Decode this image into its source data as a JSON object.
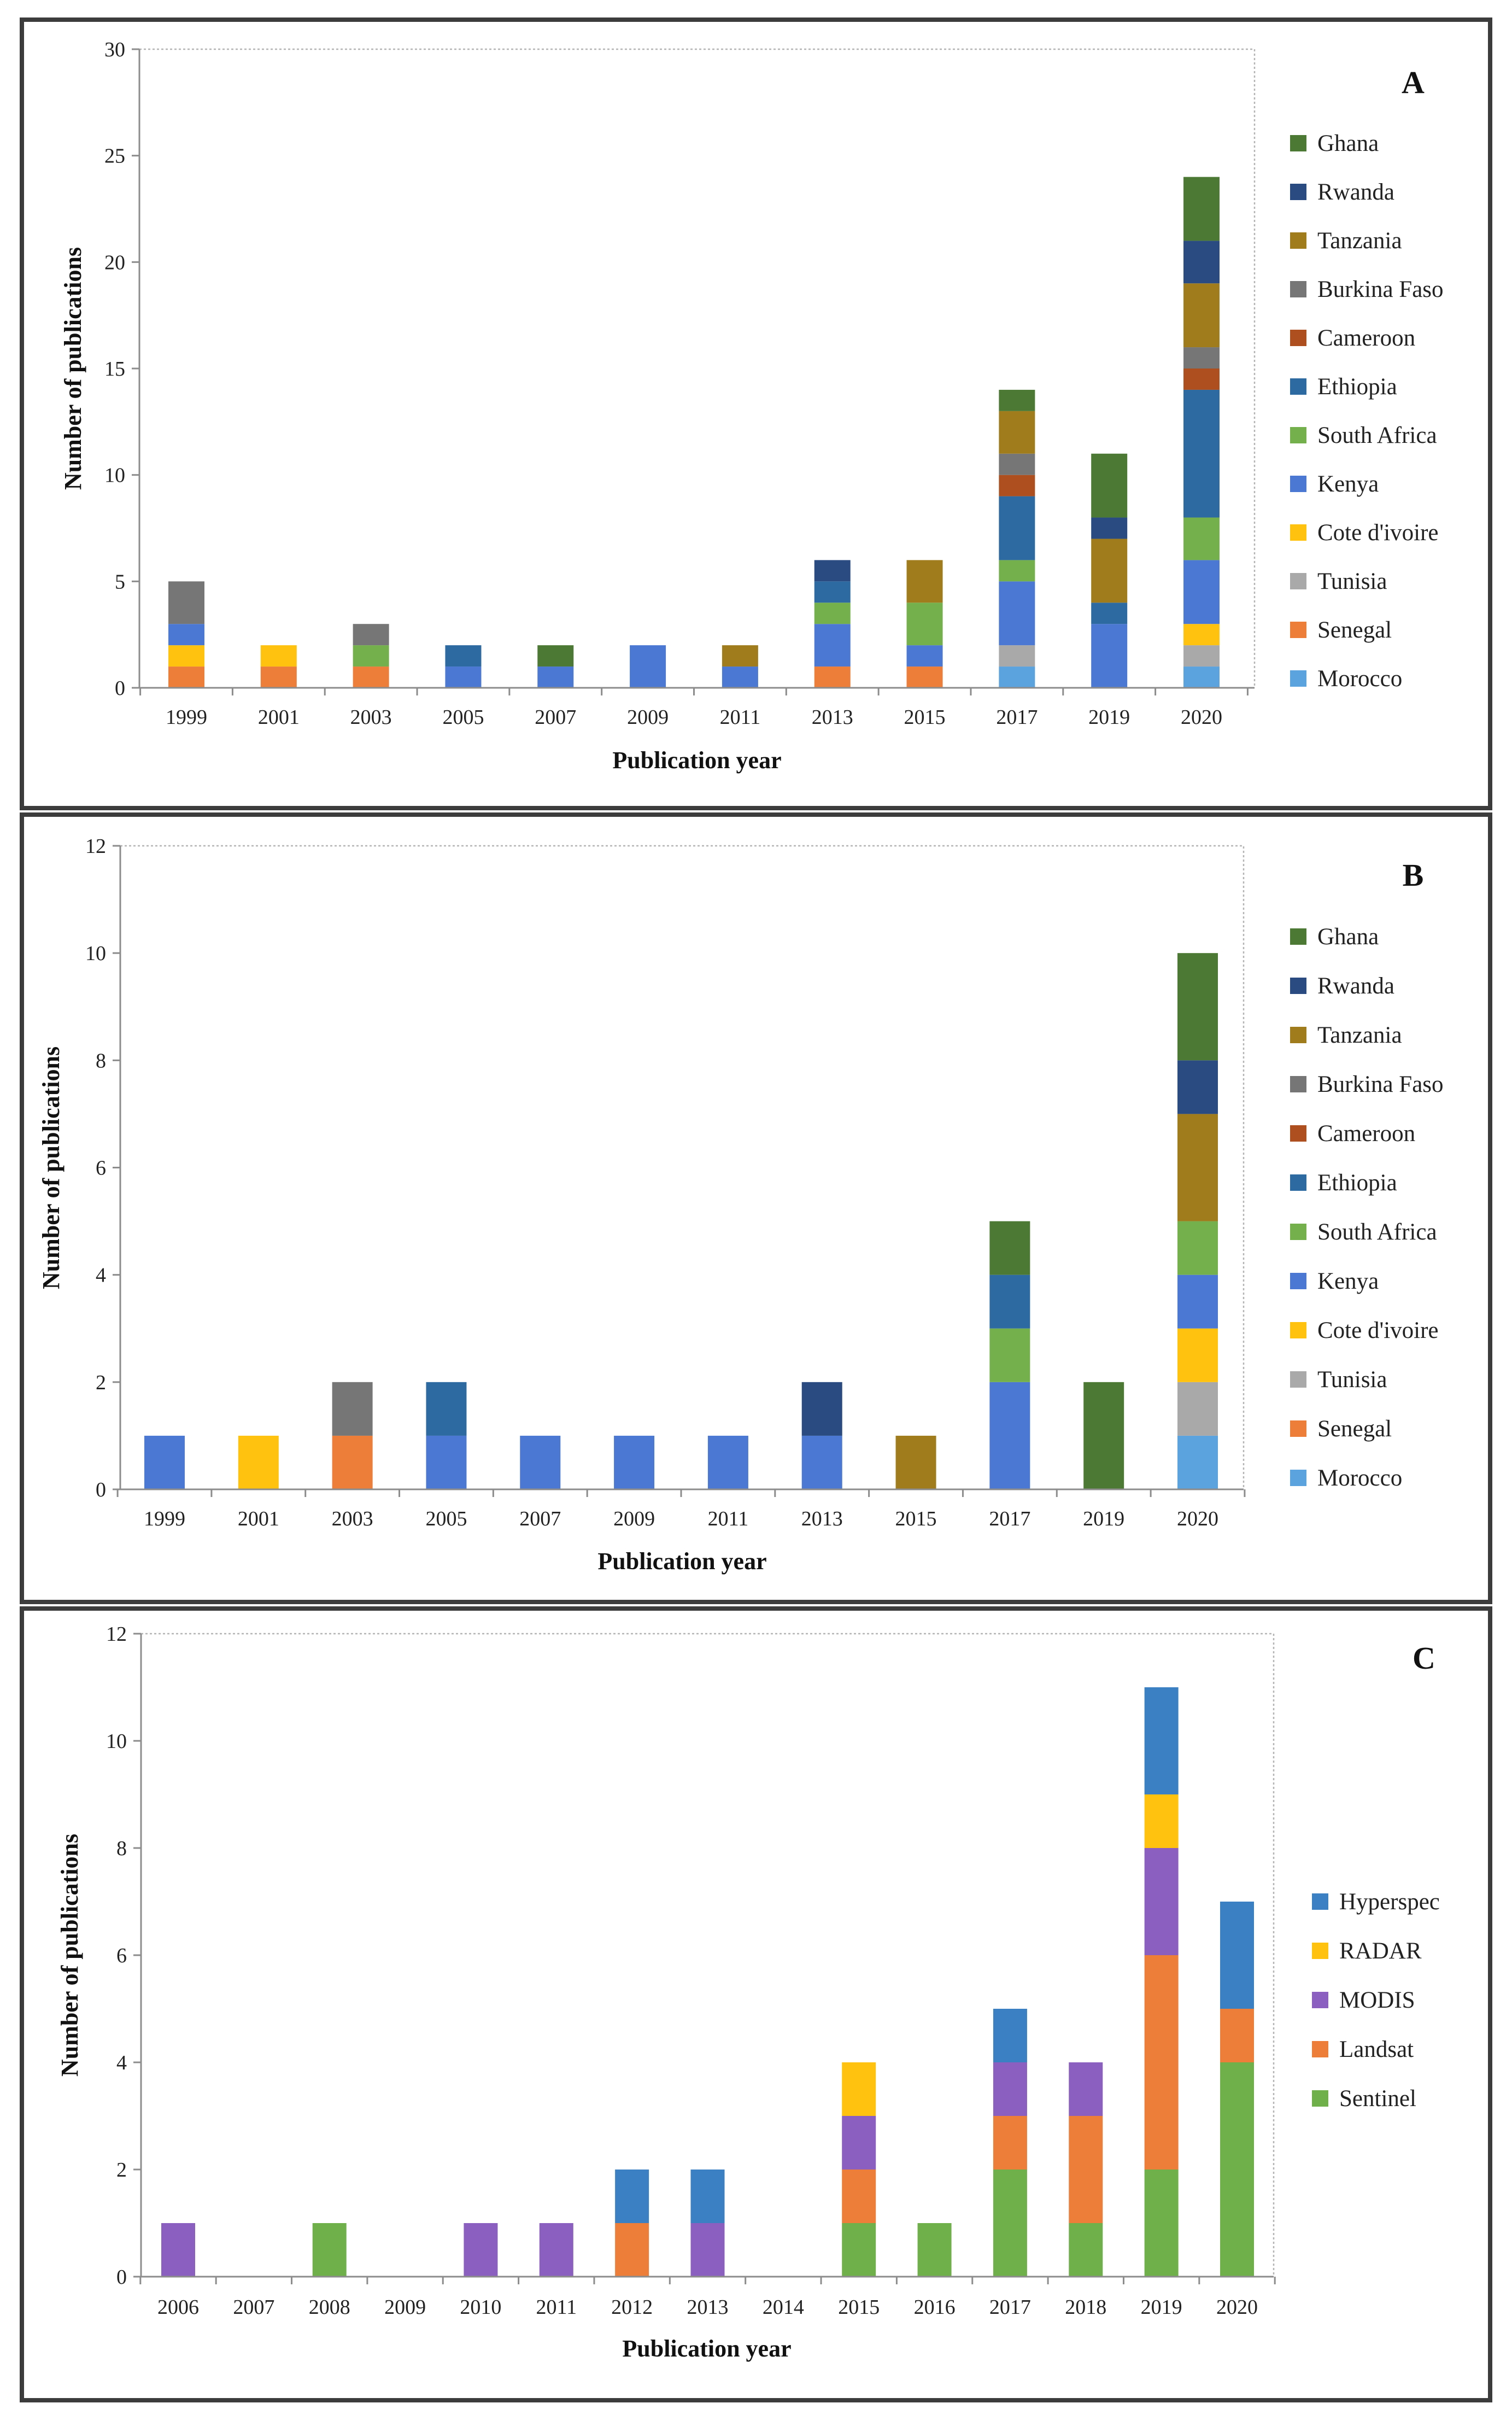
{
  "colors": {
    "Ghana": "#4c7a34",
    "Rwanda": "#294b82",
    "Tanzania": "#a07c1c",
    "Burkina Faso": "#767676",
    "Cameroon": "#ad4f1e",
    "Ethiopia": "#2e6aa2",
    "South Africa": "#74b04c",
    "Kenya": "#4b78d2",
    "Cote d'ivoire": "#ffc20e",
    "Tunisia": "#a9a9a9",
    "Senegal": "#ec7e3a",
    "Morocco": "#5ba3de",
    "Hyperspec": "#3b80c3",
    "RADAR": "#ffc20e",
    "MODIS": "#8a5fbf",
    "Landsat": "#ec7e3a",
    "Sentinel": "#6fb04a"
  },
  "chart_data": [
    {
      "type": "bar",
      "stacked": true,
      "panel": "A",
      "xlabel": "Publication year",
      "ylabel": "Number of publications",
      "ylim": [
        0,
        30
      ],
      "ytick_step": 5,
      "categories": [
        "1999",
        "2001",
        "2003",
        "2005",
        "2007",
        "2009",
        "2011",
        "2013",
        "2015",
        "2017",
        "2019",
        "2020"
      ],
      "legend": [
        "Ghana",
        "Rwanda",
        "Tanzania",
        "Burkina Faso",
        "Cameroon",
        "Ethiopia",
        "South Africa",
        "Kenya",
        "Cote d'ivoire",
        "Tunisia",
        "Senegal",
        "Morocco"
      ],
      "series": [
        {
          "name": "Morocco",
          "values": [
            0,
            0,
            0,
            0,
            0,
            0,
            0,
            0,
            0,
            1,
            0,
            1
          ]
        },
        {
          "name": "Senegal",
          "values": [
            1,
            1,
            1,
            0,
            0,
            0,
            0,
            1,
            1,
            0,
            0,
            0
          ]
        },
        {
          "name": "Tunisia",
          "values": [
            0,
            0,
            0,
            0,
            0,
            0,
            0,
            0,
            0,
            1,
            0,
            1
          ]
        },
        {
          "name": "Cote d'ivoire",
          "values": [
            1,
            1,
            0,
            0,
            0,
            0,
            0,
            0,
            0,
            0,
            0,
            1
          ]
        },
        {
          "name": "Kenya",
          "values": [
            1,
            0,
            0,
            1,
            1,
            2,
            1,
            2,
            1,
            3,
            3,
            3
          ]
        },
        {
          "name": "South Africa",
          "values": [
            0,
            0,
            1,
            0,
            0,
            0,
            0,
            1,
            2,
            1,
            0,
            2
          ]
        },
        {
          "name": "Ethiopia",
          "values": [
            0,
            0,
            0,
            1,
            0,
            0,
            0,
            1,
            0,
            3,
            1,
            6
          ]
        },
        {
          "name": "Cameroon",
          "values": [
            0,
            0,
            0,
            0,
            0,
            0,
            0,
            0,
            0,
            1,
            0,
            1
          ]
        },
        {
          "name": "Burkina Faso",
          "values": [
            2,
            0,
            1,
            0,
            0,
            0,
            0,
            0,
            0,
            1,
            0,
            1
          ]
        },
        {
          "name": "Tanzania",
          "values": [
            0,
            0,
            0,
            0,
            0,
            0,
            1,
            0,
            2,
            2,
            3,
            3
          ]
        },
        {
          "name": "Rwanda",
          "values": [
            0,
            0,
            0,
            0,
            0,
            0,
            0,
            1,
            0,
            0,
            1,
            2
          ]
        },
        {
          "name": "Ghana",
          "values": [
            0,
            0,
            0,
            0,
            1,
            0,
            0,
            0,
            0,
            1,
            3,
            3
          ]
        }
      ]
    },
    {
      "type": "bar",
      "stacked": true,
      "panel": "B",
      "xlabel": "Publication year",
      "ylabel": "Number of publications",
      "ylim": [
        0,
        12
      ],
      "ytick_step": 2,
      "categories": [
        "1999",
        "2001",
        "2003",
        "2005",
        "2007",
        "2009",
        "2011",
        "2013",
        "2015",
        "2017",
        "2019",
        "2020"
      ],
      "legend": [
        "Ghana",
        "Rwanda",
        "Tanzania",
        "Burkina Faso",
        "Cameroon",
        "Ethiopia",
        "South Africa",
        "Kenya",
        "Cote d'ivoire",
        "Tunisia",
        "Senegal",
        "Morocco"
      ],
      "series": [
        {
          "name": "Morocco",
          "values": [
            0,
            0,
            0,
            0,
            0,
            0,
            0,
            0,
            0,
            0,
            0,
            1
          ]
        },
        {
          "name": "Senegal",
          "values": [
            0,
            0,
            1,
            0,
            0,
            0,
            0,
            0,
            0,
            0,
            0,
            0
          ]
        },
        {
          "name": "Tunisia",
          "values": [
            0,
            0,
            0,
            0,
            0,
            0,
            0,
            0,
            0,
            0,
            0,
            1
          ]
        },
        {
          "name": "Cote d'ivoire",
          "values": [
            0,
            1,
            0,
            0,
            0,
            0,
            0,
            0,
            0,
            0,
            0,
            1
          ]
        },
        {
          "name": "Kenya",
          "values": [
            1,
            0,
            0,
            1,
            1,
            1,
            1,
            1,
            0,
            2,
            0,
            1
          ]
        },
        {
          "name": "South Africa",
          "values": [
            0,
            0,
            0,
            0,
            0,
            0,
            0,
            0,
            0,
            1,
            0,
            1
          ]
        },
        {
          "name": "Ethiopia",
          "values": [
            0,
            0,
            0,
            1,
            0,
            0,
            0,
            0,
            0,
            1,
            0,
            0
          ]
        },
        {
          "name": "Cameroon",
          "values": [
            0,
            0,
            0,
            0,
            0,
            0,
            0,
            0,
            0,
            0,
            0,
            0
          ]
        },
        {
          "name": "Burkina Faso",
          "values": [
            0,
            0,
            1,
            0,
            0,
            0,
            0,
            0,
            0,
            0,
            0,
            0
          ]
        },
        {
          "name": "Tanzania",
          "values": [
            0,
            0,
            0,
            0,
            0,
            0,
            0,
            0,
            1,
            0,
            0,
            2
          ]
        },
        {
          "name": "Rwanda",
          "values": [
            0,
            0,
            0,
            0,
            0,
            0,
            0,
            1,
            0,
            0,
            0,
            1
          ]
        },
        {
          "name": "Ghana",
          "values": [
            0,
            0,
            0,
            0,
            0,
            0,
            0,
            0,
            0,
            1,
            2,
            2
          ]
        }
      ]
    },
    {
      "type": "bar",
      "stacked": true,
      "panel": "C",
      "xlabel": "Publication year",
      "ylabel": "Number of publications",
      "ylim": [
        0,
        12
      ],
      "ytick_step": 2,
      "categories": [
        "2006",
        "2007",
        "2008",
        "2009",
        "2010",
        "2011",
        "2012",
        "2013",
        "2014",
        "2015",
        "2016",
        "2017",
        "2018",
        "2019",
        "2020"
      ],
      "legend": [
        "Hyperspec",
        "RADAR",
        "MODIS",
        "Landsat",
        "Sentinel"
      ],
      "series": [
        {
          "name": "Sentinel",
          "values": [
            0,
            0,
            1,
            0,
            0,
            0,
            0,
            0,
            0,
            1,
            1,
            2,
            1,
            2,
            4
          ]
        },
        {
          "name": "Landsat",
          "values": [
            0,
            0,
            0,
            0,
            0,
            0,
            1,
            0,
            0,
            1,
            0,
            1,
            2,
            4,
            1
          ]
        },
        {
          "name": "MODIS",
          "values": [
            1,
            0,
            0,
            0,
            1,
            1,
            0,
            1,
            0,
            1,
            0,
            1,
            1,
            2,
            0
          ]
        },
        {
          "name": "RADAR",
          "values": [
            0,
            0,
            0,
            0,
            0,
            0,
            0,
            0,
            0,
            1,
            0,
            0,
            0,
            1,
            0
          ]
        },
        {
          "name": "Hyperspec",
          "values": [
            0,
            0,
            0,
            0,
            0,
            0,
            1,
            1,
            0,
            0,
            0,
            1,
            0,
            2,
            2
          ]
        }
      ]
    }
  ]
}
